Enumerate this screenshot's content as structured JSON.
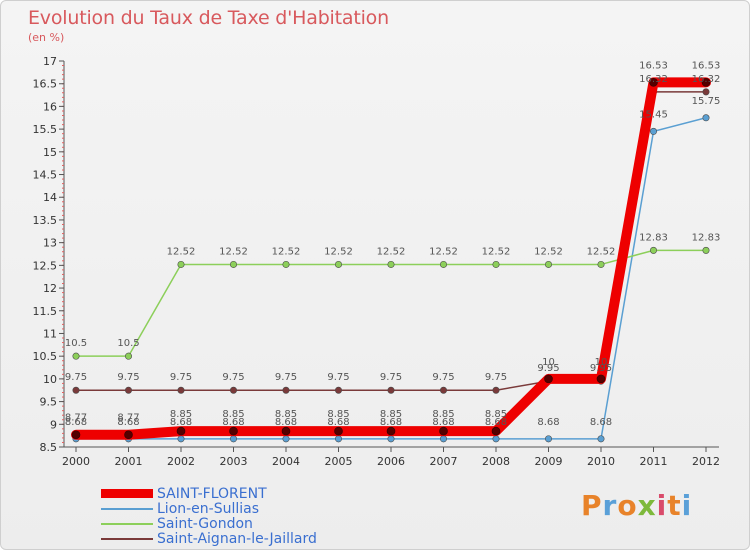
{
  "header": {
    "title": "Evolution du Taux de Taxe d'Habitation",
    "unit": "(en %)"
  },
  "brand": {
    "text": "Proxiti",
    "colors": [
      "#e8832a",
      "#5aa0d8",
      "#e8832a",
      "#7db93b",
      "#d94b6b",
      "#e8832a",
      "#5aa0d8"
    ]
  },
  "chart_data": {
    "type": "line",
    "title": "Evolution du Taux de Taxe d'Habitation",
    "subtitle": "(en %)",
    "xlabel": "",
    "ylabel": "",
    "ylim": [
      8.5,
      17
    ],
    "yticks": [
      8.5,
      9,
      9.5,
      10,
      10.5,
      11,
      11.5,
      12,
      12.5,
      13,
      13.5,
      14,
      14.5,
      15,
      15.5,
      16,
      16.5,
      17
    ],
    "grid": false,
    "legend_position": "bottom-left",
    "categories": [
      "2000",
      "2001",
      "2002",
      "2003",
      "2004",
      "2005",
      "2006",
      "2007",
      "2008",
      "2009",
      "2010",
      "2011",
      "2012"
    ],
    "series": [
      {
        "name": "SAINT-FLORENT",
        "color": "#ee0000",
        "values": [
          8.77,
          8.77,
          8.85,
          8.85,
          8.85,
          8.85,
          8.85,
          8.85,
          8.85,
          10,
          10,
          16.53,
          16.53
        ],
        "labels": [
          "8.77",
          "8.77",
          "8.85",
          "8.85",
          "8.85",
          "8.85",
          "8.85",
          "8.85",
          "8.85",
          "10",
          "10",
          "16.53",
          "16.53"
        ]
      },
      {
        "name": "Lion-en-Sullias",
        "color": "#5a9fd2",
        "values": [
          8.68,
          8.68,
          8.68,
          8.68,
          8.68,
          8.68,
          8.68,
          8.68,
          8.68,
          8.68,
          8.68,
          15.45,
          15.75
        ],
        "labels": [
          "8.68",
          "8.68",
          "8.68",
          "8.68",
          "8.68",
          "8.68",
          "8.68",
          "8.68",
          "8.68",
          "8.68",
          "8.68",
          "15.45",
          "15.75"
        ]
      },
      {
        "name": "Saint-Gondon",
        "color": "#8ccf5a",
        "values": [
          10.5,
          10.5,
          12.52,
          12.52,
          12.52,
          12.52,
          12.52,
          12.52,
          12.52,
          12.52,
          12.52,
          12.83,
          12.83
        ],
        "labels": [
          "10.5",
          "10.5",
          "12.52",
          "12.52",
          "12.52",
          "12.52",
          "12.52",
          "12.52",
          "12.52",
          "12.52",
          "12.52",
          "12.83",
          "12.83"
        ]
      },
      {
        "name": "Saint-Aignan-le-Jaillard",
        "color": "#7a3a3a",
        "values": [
          9.75,
          9.75,
          9.75,
          9.75,
          9.75,
          9.75,
          9.75,
          9.75,
          9.75,
          9.95,
          9.95,
          16.32,
          16.32
        ],
        "labels": [
          "9.75",
          "9.75",
          "9.75",
          "9.75",
          "9.75",
          "9.75",
          "9.75",
          "9.75",
          "9.75",
          "9.95",
          "9.95",
          "16.32",
          "16.32"
        ]
      }
    ]
  }
}
